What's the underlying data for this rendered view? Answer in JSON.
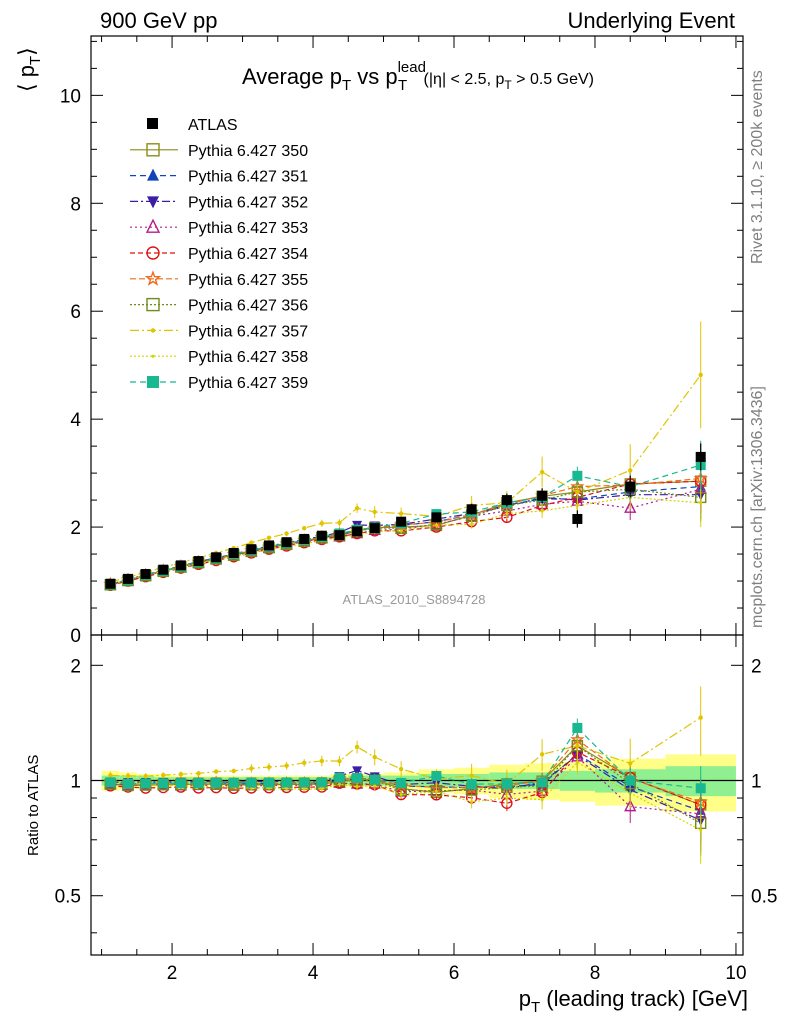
{
  "header": {
    "left": "900 GeV pp",
    "right": "Underlying Event"
  },
  "side_text": {
    "rivet": "Rivet 3.1.10, ≥ 200k events",
    "mcplots": "mcplots.cern.ch [arXiv:1306.3436]"
  },
  "title": {
    "main": "Average p",
    "main_sub": "T",
    "vs": " vs p",
    "vs_sub": "T",
    "vs_sup": "lead",
    "cuts_a": " (|η| < 2.5, p",
    "cuts_sub": "T",
    "cuts_b": " > 0.5 GeV)"
  },
  "watermark": "ATLAS_2010_S8894728",
  "y_axis_label": {
    "left": "⟨ p",
    "sub": "T",
    "right": "⟩"
  },
  "ratio_label": "Ratio to ATLAS",
  "x_axis_label": {
    "p": "p",
    "sub": "T",
    "rest": " (leading track) [GeV]"
  },
  "chart_data": {
    "type": "scatter",
    "xlim": [
      0.85,
      10.1
    ],
    "ylim": [
      0,
      11.1
    ],
    "ratio_ylim": [
      0.35,
      2.4
    ],
    "x_ticks": [
      2,
      4,
      6,
      8,
      10
    ],
    "x_tick_labels": [
      "2",
      "4",
      "6",
      "8",
      "10"
    ],
    "y_ticks": [
      0,
      2,
      4,
      6,
      8,
      10
    ],
    "y_tick_labels": [
      "0",
      "2",
      "4",
      "6",
      "8",
      "10"
    ],
    "ratio_ticks": [
      0.5,
      1,
      2
    ],
    "ratio_tick_labels": [
      "0.5",
      "1",
      "2"
    ],
    "legend_position": "top-left",
    "x": [
      1.125,
      1.375,
      1.625,
      1.875,
      2.125,
      2.375,
      2.625,
      2.875,
      3.125,
      3.375,
      3.625,
      3.875,
      4.125,
      4.375,
      4.625,
      4.875,
      5.25,
      5.75,
      6.25,
      6.75,
      7.25,
      7.75,
      8.5,
      9.5
    ],
    "x_bin_edges": [
      1.0,
      1.25,
      1.5,
      1.75,
      2.0,
      2.25,
      2.5,
      2.75,
      3.0,
      3.25,
      3.5,
      3.75,
      4.0,
      4.25,
      4.5,
      4.75,
      5.0,
      5.5,
      6.0,
      6.5,
      7.0,
      7.5,
      8.0,
      9.0,
      10.0
    ],
    "atlas": {
      "name": "ATLAS",
      "y": [
        0.95,
        1.04,
        1.13,
        1.21,
        1.29,
        1.37,
        1.44,
        1.52,
        1.59,
        1.66,
        1.72,
        1.78,
        1.84,
        1.85,
        1.92,
        1.98,
        2.1,
        2.18,
        2.33,
        2.5,
        2.58,
        2.15,
        2.75,
        3.3
      ],
      "yerr": [
        0.02,
        0.02,
        0.02,
        0.02,
        0.02,
        0.02,
        0.03,
        0.03,
        0.03,
        0.03,
        0.04,
        0.04,
        0.05,
        0.05,
        0.06,
        0.07,
        0.08,
        0.09,
        0.1,
        0.12,
        0.14,
        0.16,
        0.2,
        0.25
      ]
    },
    "band_green": [
      0.03,
      0.03,
      0.03,
      0.02,
      0.02,
      0.02,
      0.02,
      0.02,
      0.02,
      0.02,
      0.02,
      0.02,
      0.02,
      0.02,
      0.03,
      0.03,
      0.03,
      0.04,
      0.04,
      0.05,
      0.05,
      0.06,
      0.07,
      0.09
    ],
    "band_yellow": [
      0.06,
      0.05,
      0.04,
      0.04,
      0.03,
      0.03,
      0.03,
      0.03,
      0.03,
      0.03,
      0.03,
      0.03,
      0.03,
      0.04,
      0.04,
      0.04,
      0.05,
      0.07,
      0.08,
      0.1,
      0.11,
      0.12,
      0.14,
      0.17
    ],
    "series": [
      {
        "name": "Pythia 6.427 350",
        "color": "#8c8c1a",
        "marker": "square-open",
        "dash": "",
        "line_marker": true,
        "y": [
          0.93,
          1.01,
          1.1,
          1.18,
          1.26,
          1.34,
          1.41,
          1.48,
          1.55,
          1.62,
          1.68,
          1.74,
          1.8,
          1.84,
          1.93,
          1.99,
          2.0,
          2.03,
          2.22,
          2.45,
          2.57,
          2.65,
          2.8,
          2.85
        ]
      },
      {
        "name": "Pythia 6.427 351",
        "color": "#1144bb",
        "marker": "triangle-up",
        "dash": "6,4",
        "line_marker": true,
        "y": [
          0.93,
          1.02,
          1.11,
          1.19,
          1.27,
          1.35,
          1.42,
          1.49,
          1.56,
          1.63,
          1.69,
          1.75,
          1.81,
          1.85,
          1.94,
          2.0,
          2.03,
          2.1,
          2.23,
          2.41,
          2.52,
          2.52,
          2.65,
          2.75
        ]
      },
      {
        "name": "Pythia 6.427 352",
        "color": "#3b1ea6",
        "marker": "triangle-down",
        "dash": "8,3,2,3",
        "line_marker": true,
        "y": [
          0.94,
          1.03,
          1.12,
          1.2,
          1.28,
          1.36,
          1.43,
          1.5,
          1.58,
          1.65,
          1.71,
          1.77,
          1.83,
          1.9,
          2.04,
          2.03,
          2.05,
          2.15,
          2.25,
          2.38,
          2.55,
          2.5,
          2.6,
          2.6
        ]
      },
      {
        "name": "Pythia 6.427 353",
        "color": "#b31c8c",
        "marker": "triangle-up-open",
        "dash": "2,3",
        "line_marker": true,
        "y": [
          0.93,
          1.01,
          1.1,
          1.18,
          1.25,
          1.33,
          1.4,
          1.47,
          1.54,
          1.61,
          1.67,
          1.73,
          1.79,
          1.82,
          1.88,
          1.94,
          1.96,
          2.05,
          2.2,
          2.3,
          2.42,
          2.48,
          2.35,
          2.7
        ]
      },
      {
        "name": "Pythia 6.427 354",
        "color": "#dd1111",
        "marker": "circle-open",
        "dash": "5,3",
        "line_marker": true,
        "y": [
          0.92,
          1.0,
          1.08,
          1.16,
          1.24,
          1.31,
          1.38,
          1.45,
          1.52,
          1.59,
          1.65,
          1.71,
          1.77,
          1.82,
          1.88,
          1.93,
          1.93,
          2.0,
          2.1,
          2.18,
          2.4,
          2.55,
          2.8,
          2.85
        ]
      },
      {
        "name": "Pythia 6.427 355",
        "color": "#ee6b1a",
        "marker": "star-open",
        "dash": "6,3",
        "line_marker": true,
        "y": [
          0.94,
          1.02,
          1.11,
          1.19,
          1.27,
          1.35,
          1.42,
          1.49,
          1.56,
          1.63,
          1.69,
          1.75,
          1.81,
          1.87,
          1.94,
          1.98,
          2.04,
          2.09,
          2.23,
          2.42,
          2.58,
          2.75,
          2.78,
          2.9
        ]
      },
      {
        "name": "Pythia 6.427 356",
        "color": "#6e8c1a",
        "marker": "square-open",
        "dash": "2,2",
        "line_marker": true,
        "y": [
          0.93,
          1.01,
          1.1,
          1.18,
          1.26,
          1.34,
          1.41,
          1.48,
          1.55,
          1.62,
          1.68,
          1.74,
          1.8,
          1.85,
          1.92,
          1.98,
          1.98,
          2.05,
          2.2,
          2.4,
          2.5,
          2.65,
          2.7,
          2.55
        ]
      },
      {
        "name": "Pythia 6.427 357",
        "color": "#e0c400",
        "marker": "dot",
        "dash": "9,3,2,3",
        "line_marker": true,
        "y": [
          0.98,
          1.07,
          1.16,
          1.25,
          1.34,
          1.43,
          1.52,
          1.61,
          1.71,
          1.8,
          1.88,
          1.98,
          2.07,
          2.08,
          2.35,
          2.28,
          2.25,
          2.2,
          2.4,
          2.45,
          3.02,
          2.65,
          3.05,
          4.82
        ]
      },
      {
        "name": "Pythia 6.427 358",
        "color": "#d4d400",
        "marker": "dot-small",
        "dash": "2,2",
        "line_marker": true,
        "y": [
          0.94,
          1.02,
          1.11,
          1.18,
          1.25,
          1.32,
          1.39,
          1.46,
          1.52,
          1.59,
          1.64,
          1.69,
          1.75,
          1.81,
          1.85,
          1.92,
          1.93,
          2.04,
          2.05,
          2.25,
          2.3,
          2.4,
          2.55,
          2.45
        ]
      },
      {
        "name": "Pythia 6.427 359",
        "color": "#18b890",
        "marker": "square",
        "dash": "6,4",
        "line_marker": true,
        "y": [
          0.94,
          1.02,
          1.11,
          1.19,
          1.27,
          1.35,
          1.42,
          1.5,
          1.57,
          1.64,
          1.7,
          1.76,
          1.82,
          1.88,
          1.95,
          1.99,
          2.07,
          2.24,
          2.28,
          2.45,
          2.55,
          2.95,
          2.75,
          3.15
        ]
      }
    ],
    "model_yerr": [
      0.01,
      0.01,
      0.01,
      0.01,
      0.01,
      0.01,
      0.01,
      0.01,
      0.02,
      0.02,
      0.02,
      0.02,
      0.03,
      0.03,
      0.04,
      0.05,
      0.05,
      0.06,
      0.08,
      0.1,
      0.13,
      0.17,
      0.22,
      0.45
    ]
  }
}
